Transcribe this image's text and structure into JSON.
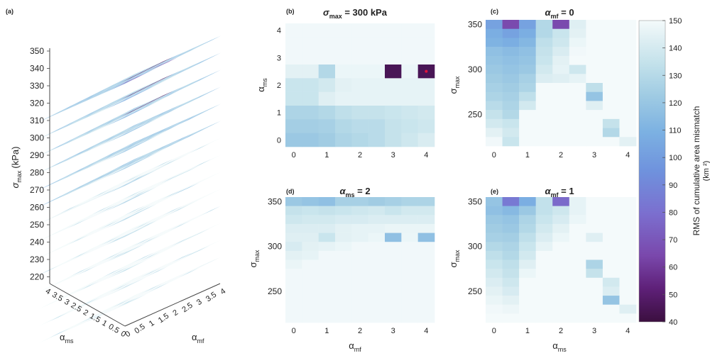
{
  "panel_a": {
    "letter": "(a)",
    "ylabel_sym": "σ",
    "ylabel_sub": "max",
    "ylabel_unit": "(kPa)",
    "yticks": [
      "350",
      "340",
      "330",
      "320",
      "310",
      "300",
      "290",
      "280",
      "270",
      "260",
      "250",
      "240",
      "230",
      "220"
    ],
    "ams_ticks": [
      "4",
      "3.5",
      "3",
      "2.5",
      "2",
      "1.5",
      "1",
      "0.5",
      "0"
    ],
    "amf_ticks": [
      "0",
      "0.5",
      "1",
      "1.5",
      "2",
      "2.5",
      "3",
      "3.5",
      "4"
    ],
    "xlabel_sym": "α",
    "xlabel_sub": "ms",
    "zlabel_sym": "α",
    "zlabel_sub": "mf"
  },
  "panel_b": {
    "letter": "(b)",
    "title_sym": "σ",
    "title_sub": "max",
    "title_rest": " = 300 kPa",
    "xticks": [
      "0",
      "1",
      "2",
      "3",
      "4"
    ],
    "yticks": [
      "4",
      "3",
      "2",
      "1",
      "0"
    ],
    "ylabel_sym": "α",
    "ylabel_sub": "ms",
    "marker_color": "#e0143c"
  },
  "panel_c": {
    "letter": "(c)",
    "title_sym": "α",
    "title_sub": "mf",
    "title_rest": " = 0",
    "xticks": [
      "0",
      "1",
      "2",
      "3",
      "4"
    ],
    "yticks": [
      "350",
      "300",
      "250"
    ],
    "ylabel_sym": "σ",
    "ylabel_sub": "max"
  },
  "panel_d": {
    "letter": "(d)",
    "title_sym": "α",
    "title_sub": "ms",
    "title_rest": " = 2",
    "xticks": [
      "0",
      "1",
      "2",
      "3",
      "4"
    ],
    "yticks": [
      "350",
      "300",
      "250"
    ],
    "ylabel_sym": "σ",
    "ylabel_sub": "max",
    "xlabel_sym": "α",
    "xlabel_sub": "mf"
  },
  "panel_e": {
    "letter": "(e)",
    "title_sym": "α",
    "title_sub": "mf",
    "title_rest": " = 1",
    "xticks": [
      "0",
      "1",
      "2",
      "3",
      "4"
    ],
    "yticks": [
      "350",
      "300",
      "250"
    ],
    "ylabel_sym": "σ",
    "ylabel_sub": "max",
    "xlabel_sym": "α",
    "xlabel_sub": "ms"
  },
  "colorbar": {
    "ticks": [
      "150",
      "140",
      "130",
      "120",
      "110",
      "100",
      "90",
      "80",
      "70",
      "60",
      "50",
      "40"
    ],
    "label_line1": "RMS of cumulative area mismatch",
    "label_line2": "(km ²)",
    "stops": [
      "#f4fafb",
      "#dfeff3",
      "#c4e2eb",
      "#9fcbe3",
      "#7cb1e2",
      "#6f92dd",
      "#7b6fcf",
      "#7a48ac",
      "#5e2078",
      "#3b0f3f"
    ]
  },
  "chart_data": [
    {
      "type": "heatmap",
      "panel": "b",
      "x_label": "α_mf",
      "y_label": "α_ms",
      "x": [
        0,
        0.5,
        1,
        1.5,
        2,
        2.5,
        3,
        3.5,
        4
      ],
      "y": [
        4,
        3.5,
        3,
        2.5,
        2,
        1.5,
        1,
        0.5,
        0
      ],
      "values": [
        [
          148,
          148,
          148,
          148,
          148,
          148,
          148,
          148,
          148
        ],
        [
          148,
          148,
          148,
          148,
          148,
          148,
          148,
          148,
          148
        ],
        [
          148,
          148,
          148,
          148,
          148,
          148,
          148,
          148,
          148
        ],
        [
          140,
          140,
          120,
          145,
          145,
          145,
          45,
          145,
          45
        ],
        [
          128,
          128,
          132,
          140,
          142,
          142,
          142,
          142,
          142
        ],
        [
          128,
          128,
          138,
          142,
          142,
          142,
          142,
          142,
          142
        ],
        [
          118,
          118,
          120,
          124,
          126,
          126,
          128,
          130,
          132
        ],
        [
          115,
          115,
          116,
          120,
          122,
          122,
          126,
          128,
          130
        ],
        [
          112,
          112,
          114,
          118,
          120,
          122,
          126,
          130,
          135
        ]
      ],
      "marker": {
        "x": 4,
        "y": 2.5
      }
    },
    {
      "type": "heatmap",
      "panel": "c",
      "x_label": "α_ms",
      "y_label": "σ_max",
      "x": [
        0,
        0.5,
        1,
        1.5,
        2,
        2.5,
        3,
        3.5,
        4
      ],
      "y": [
        350,
        340,
        330,
        320,
        310,
        300,
        290,
        280,
        270,
        260,
        250,
        240,
        230,
        220
      ],
      "values": [
        [
          95,
          65,
          95,
          120,
          65,
          138,
          150,
          150,
          150
        ],
        [
          100,
          95,
          100,
          120,
          128,
          140,
          150,
          150,
          150
        ],
        [
          102,
          100,
          104,
          124,
          130,
          145,
          150,
          150,
          150
        ],
        [
          108,
          106,
          108,
          126,
          135,
          148,
          150,
          150,
          150
        ],
        [
          110,
          108,
          110,
          128,
          140,
          150,
          150,
          150,
          150
        ],
        [
          112,
          110,
          112,
          132,
          142,
          130,
          150,
          150,
          150
        ],
        [
          114,
          112,
          116,
          136,
          138,
          142,
          150,
          150,
          150
        ],
        [
          116,
          114,
          118,
          150,
          150,
          150,
          124,
          150,
          150
        ],
        [
          118,
          116,
          124,
          150,
          150,
          150,
          110,
          150,
          150
        ],
        [
          122,
          118,
          132,
          150,
          150,
          150,
          138,
          150,
          150
        ],
        [
          126,
          120,
          150,
          150,
          150,
          150,
          150,
          150,
          150
        ],
        [
          132,
          128,
          150,
          150,
          150,
          150,
          150,
          126,
          150
        ],
        [
          140,
          132,
          150,
          150,
          150,
          150,
          150,
          120,
          150
        ],
        [
          148,
          128,
          150,
          150,
          150,
          150,
          150,
          150,
          140
        ]
      ]
    },
    {
      "type": "heatmap",
      "panel": "d",
      "x_label": "α_mf",
      "y_label": "σ_max",
      "x": [
        0,
        0.5,
        1,
        1.5,
        2,
        2.5,
        3,
        3.5,
        4
      ],
      "y": [
        350,
        340,
        330,
        320,
        310,
        300,
        290,
        280,
        270,
        260,
        250,
        240,
        230,
        220
      ],
      "values": [
        [
          112,
          110,
          108,
          116,
          116,
          114,
          116,
          118,
          118
        ],
        [
          126,
          128,
          126,
          128,
          130,
          132,
          128,
          132,
          132
        ],
        [
          130,
          132,
          132,
          134,
          134,
          136,
          136,
          136,
          136
        ],
        [
          136,
          136,
          136,
          140,
          142,
          142,
          144,
          144,
          144
        ],
        [
          138,
          138,
          128,
          140,
          142,
          145,
          108,
          145,
          108
        ],
        [
          134,
          140,
          142,
          145,
          148,
          148,
          148,
          148,
          148
        ],
        [
          140,
          142,
          148,
          148,
          148,
          148,
          148,
          148,
          148
        ],
        [
          144,
          148,
          148,
          148,
          148,
          148,
          148,
          148,
          148
        ],
        [
          148,
          148,
          148,
          148,
          148,
          148,
          148,
          148,
          148
        ],
        [
          148,
          148,
          148,
          148,
          148,
          148,
          148,
          148,
          148
        ],
        [
          148,
          148,
          148,
          148,
          148,
          148,
          148,
          148,
          148
        ],
        [
          148,
          148,
          148,
          148,
          148,
          148,
          148,
          148,
          148
        ],
        [
          148,
          148,
          148,
          148,
          148,
          148,
          148,
          148,
          148
        ],
        [
          148,
          148,
          148,
          148,
          148,
          148,
          148,
          148,
          148
        ]
      ]
    },
    {
      "type": "heatmap",
      "panel": "e",
      "x_label": "α_ms",
      "y_label": "σ_max",
      "x": [
        0,
        0.5,
        1,
        1.5,
        2,
        2.5,
        3,
        3.5,
        4
      ],
      "y": [
        350,
        340,
        330,
        320,
        310,
        300,
        290,
        280,
        270,
        260,
        250,
        240,
        230,
        220
      ],
      "values": [
        [
          110,
          80,
          100,
          125,
          75,
          142,
          150,
          150,
          150
        ],
        [
          108,
          105,
          112,
          125,
          130,
          142,
          150,
          150,
          150
        ],
        [
          112,
          110,
          118,
          128,
          134,
          145,
          150,
          150,
          150
        ],
        [
          114,
          112,
          120,
          132,
          140,
          150,
          150,
          150,
          150
        ],
        [
          116,
          115,
          124,
          136,
          145,
          150,
          138,
          150,
          150
        ],
        [
          120,
          118,
          128,
          142,
          150,
          150,
          150,
          150,
          150
        ],
        [
          124,
          120,
          132,
          150,
          150,
          150,
          150,
          150,
          150
        ],
        [
          128,
          124,
          138,
          150,
          150,
          150,
          118,
          150,
          150
        ],
        [
          132,
          126,
          145,
          150,
          150,
          150,
          126,
          150,
          150
        ],
        [
          136,
          130,
          150,
          150,
          150,
          150,
          150,
          132,
          150
        ],
        [
          140,
          134,
          150,
          150,
          150,
          150,
          150,
          136,
          150
        ],
        [
          144,
          140,
          150,
          150,
          150,
          150,
          150,
          110,
          150
        ],
        [
          148,
          146,
          150,
          150,
          150,
          150,
          150,
          150,
          138
        ],
        [
          150,
          150,
          150,
          150,
          150,
          150,
          150,
          150,
          150
        ]
      ]
    },
    {
      "type": "heatmap",
      "panel": "a",
      "x_label": "α_mf",
      "y_label": "α_ms",
      "layers": [
        350,
        340,
        330,
        320,
        310,
        300,
        290,
        280,
        270,
        260,
        250,
        240,
        230,
        220
      ]
    }
  ]
}
